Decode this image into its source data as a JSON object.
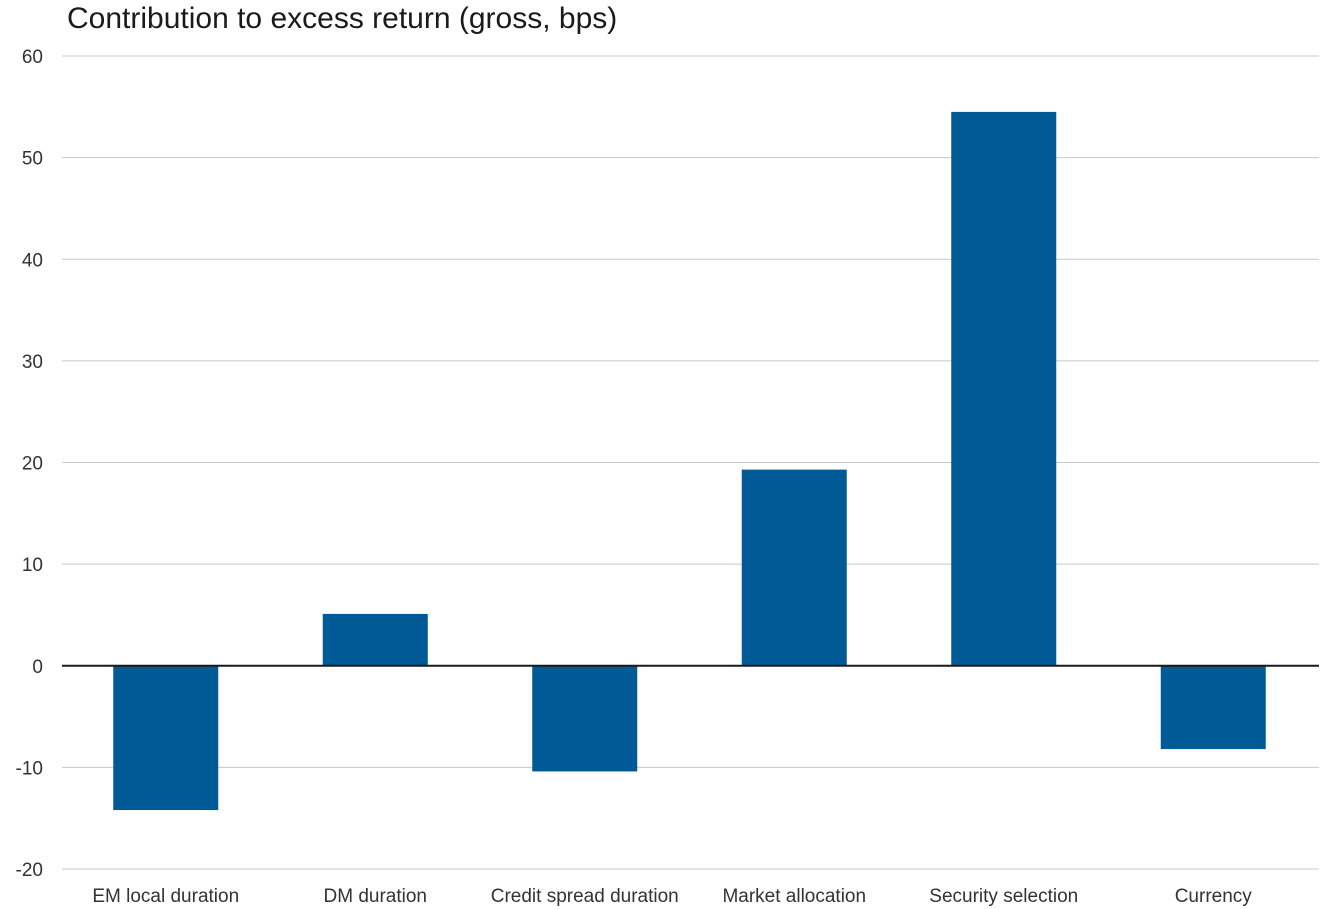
{
  "chart_data": {
    "type": "bar",
    "title": "Contribution to excess return (gross, bps)",
    "categories": [
      "EM local duration",
      "DM duration",
      "Credit spread duration",
      "Market allocation",
      "Security selection",
      "Currency"
    ],
    "values": [
      -14.2,
      5.1,
      -10.4,
      19.3,
      54.5,
      -8.2
    ],
    "ylim": [
      -20,
      60
    ],
    "yticks": [
      60,
      50,
      40,
      30,
      20,
      10,
      0,
      -10,
      -20
    ],
    "xlabel": "",
    "ylabel": "",
    "grid": true,
    "legend": "none",
    "bar_color": "#005a96",
    "grid_color": "#c8c8c8",
    "zero_line_color": "#1a1a1a"
  }
}
